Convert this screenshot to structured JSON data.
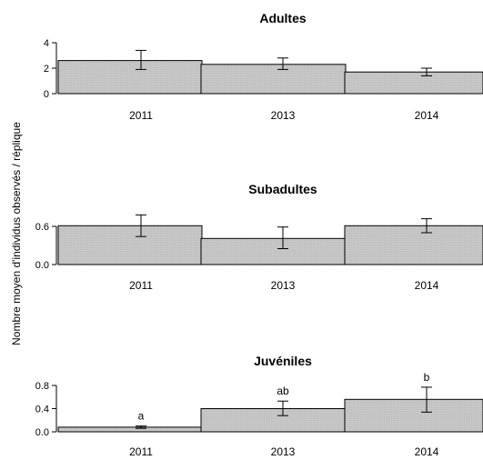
{
  "ylabel": "Nombre moyen d'individus observés / réplique",
  "colors": {
    "bar_fill": "#c8c8c8",
    "bar_stroke": "#000000",
    "axis": "#000000"
  },
  "chart_data": [
    {
      "type": "bar",
      "title": "Adultes",
      "categories": [
        "2011",
        "2013",
        "2014"
      ],
      "values": [
        2.6,
        2.3,
        1.7
      ],
      "error_low": [
        1.9,
        1.9,
        1.4
      ],
      "error_high": [
        3.4,
        2.8,
        2.0
      ],
      "sig_labels": [
        "",
        "",
        ""
      ],
      "ylim": [
        0,
        4
      ],
      "yticks": [
        0,
        2,
        4
      ],
      "ytick_labels": [
        "0",
        "2",
        "4"
      ]
    },
    {
      "type": "bar",
      "title": "Subadultes",
      "categories": [
        "2011",
        "2013",
        "2014"
      ],
      "values": [
        0.61,
        0.41,
        0.61
      ],
      "error_low": [
        0.44,
        0.25,
        0.5
      ],
      "error_high": [
        0.78,
        0.59,
        0.72
      ],
      "sig_labels": [
        "",
        "",
        ""
      ],
      "ylim": [
        0,
        0.8
      ],
      "yticks": [
        0,
        0.6
      ],
      "ytick_labels": [
        "0.0",
        "0.6"
      ]
    },
    {
      "type": "bar",
      "title": "Juvéniles",
      "categories": [
        "2011",
        "2013",
        "2014"
      ],
      "values": [
        0.08,
        0.4,
        0.56
      ],
      "error_low": [
        0.06,
        0.28,
        0.34
      ],
      "error_high": [
        0.1,
        0.53,
        0.77
      ],
      "sig_labels": [
        "a",
        "ab",
        "b"
      ],
      "ylim": [
        0,
        0.8
      ],
      "yticks": [
        0,
        0.4,
        0.8
      ],
      "ytick_labels": [
        "0.0",
        "0.4",
        "0.8"
      ]
    }
  ]
}
